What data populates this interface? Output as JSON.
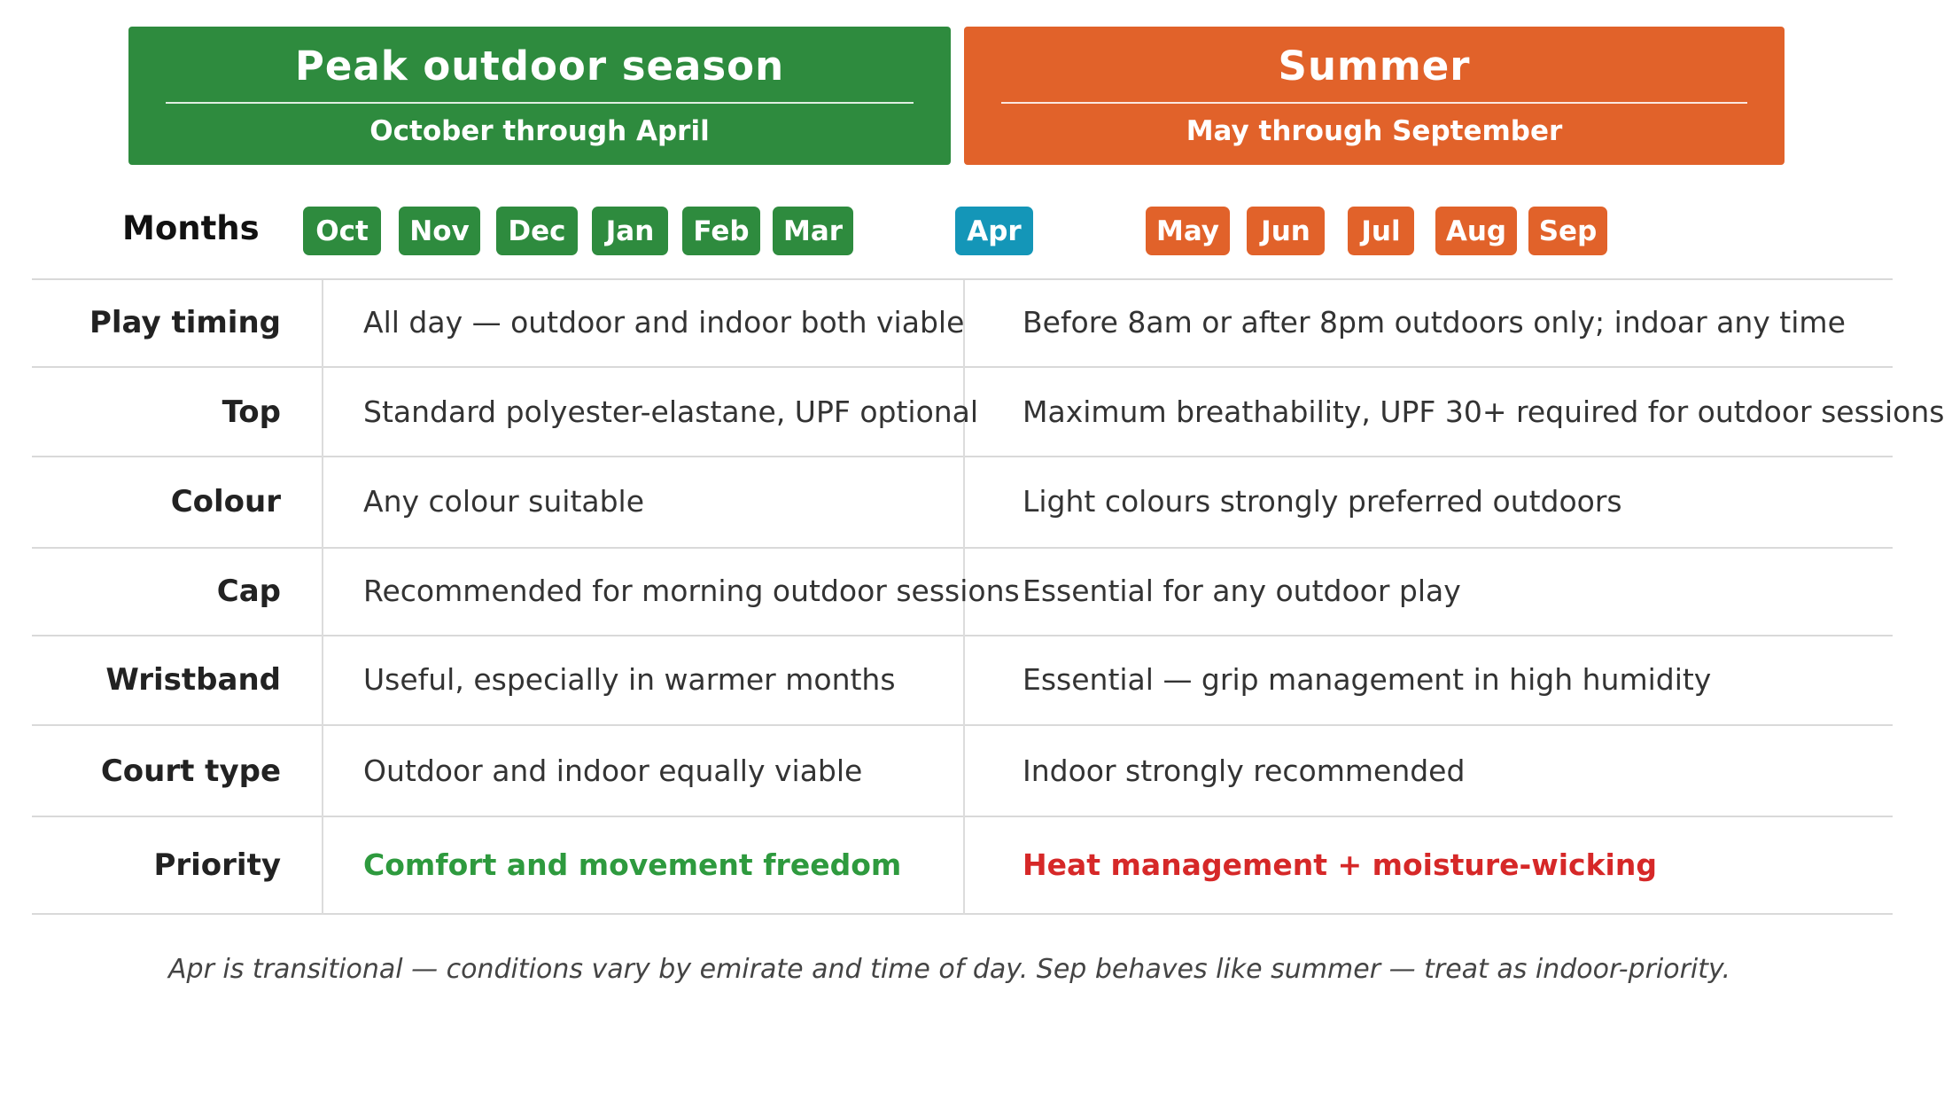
{
  "seasons": {
    "peak": {
      "title": "Peak outdoor season",
      "subtitle": "October through April",
      "color": "#2e8b3e"
    },
    "summer": {
      "title": "Summer",
      "subtitle": "May through September",
      "color": "#e1622a"
    }
  },
  "months": {
    "label": "Months",
    "items": [
      {
        "name": "Oct",
        "season": "peak"
      },
      {
        "name": "Nov",
        "season": "peak"
      },
      {
        "name": "Dec",
        "season": "peak"
      },
      {
        "name": "Jan",
        "season": "peak"
      },
      {
        "name": "Feb",
        "season": "peak"
      },
      {
        "name": "Mar",
        "season": "peak"
      },
      {
        "name": "Apr",
        "season": "transitional"
      },
      {
        "name": "May",
        "season": "summer"
      },
      {
        "name": "Jun",
        "season": "summer"
      },
      {
        "name": "Jul",
        "season": "summer"
      },
      {
        "name": "Aug",
        "season": "summer"
      },
      {
        "name": "Sep",
        "season": "summer"
      }
    ],
    "colors": {
      "peak": "#2e8b3e",
      "transitional": "#1496b8",
      "summer": "#e1622a"
    }
  },
  "rows": [
    {
      "label": "Play timing",
      "peak": "All day — outdoor and indoor both viable",
      "summer": "Before 8am or after 8pm outdoors only; indoar any time"
    },
    {
      "label": "Top",
      "peak": "Standard polyester-elastane, UPF optional",
      "summer": "Maximum breathability, UPF 30+ required for outdoor sessions"
    },
    {
      "label": "Colour",
      "peak": "Any colour suitable",
      "summer": "Light colours strongly preferred outdoors"
    },
    {
      "label": "Cap",
      "peak": "Recommended for morning outdoor sessions",
      "summer": "Essential for any outdoor play"
    },
    {
      "label": "Wristband",
      "peak": "Useful, especially in warmer months",
      "summer": "Essential — grip management in high humidity"
    },
    {
      "label": "Court type",
      "peak": "Outdoor and indoor equally viable",
      "summer": "Indoor strongly recommended"
    },
    {
      "label": "Priority",
      "peak": "Comfort and movement freedom",
      "summer": "Heat management + moisture-wicking"
    }
  ],
  "priority_colors": {
    "peak": "#2e9a3e",
    "summer": "#d62828"
  },
  "footnote": "Apr is transitional — conditions vary by emirate and time of day. Sep behaves like summer — treat as indoor-priority."
}
